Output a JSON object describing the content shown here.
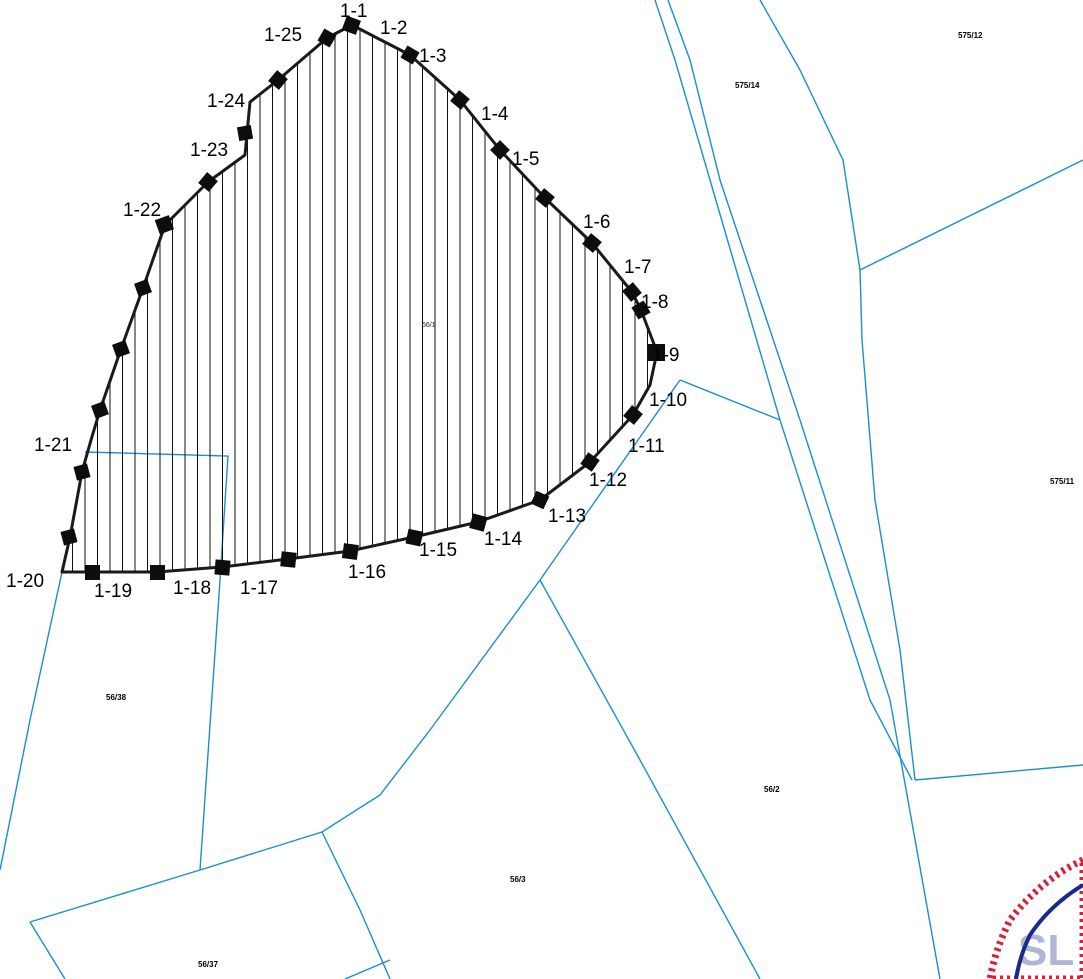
{
  "colors": {
    "parcel_boundary": "#1a8fd0",
    "plot_outline": "#1a1a1a",
    "hatching": "#111111",
    "marker": "#0d0d0d",
    "stamp_red": "#d8203a",
    "stamp_blue": "#1a2a8a"
  },
  "parcels": {
    "p56_1": "56/1",
    "p575_12": "575/12",
    "p575_14": "575/14",
    "p575_11": "575/11",
    "p56_38": "56/38",
    "p56_2": "56/2",
    "p56_3": "56/3",
    "p56_37": "56/37"
  },
  "points": [
    {
      "id": "1",
      "label": "1-1"
    },
    {
      "id": "2",
      "label": "1-2"
    },
    {
      "id": "3",
      "label": "1-3"
    },
    {
      "id": "4",
      "label": "1-4"
    },
    {
      "id": "5",
      "label": "1-5"
    },
    {
      "id": "6",
      "label": "1-6"
    },
    {
      "id": "7",
      "label": "1-7"
    },
    {
      "id": "8",
      "label": "1-8"
    },
    {
      "id": "9",
      "label": "1-9"
    },
    {
      "id": "10",
      "label": "1-10"
    },
    {
      "id": "11",
      "label": "1-11"
    },
    {
      "id": "12",
      "label": "1-12"
    },
    {
      "id": "13",
      "label": "1-13"
    },
    {
      "id": "14",
      "label": "1-14"
    },
    {
      "id": "15",
      "label": "1-15"
    },
    {
      "id": "16",
      "label": "1-16"
    },
    {
      "id": "17",
      "label": "1-17"
    },
    {
      "id": "18",
      "label": "1-18"
    },
    {
      "id": "19",
      "label": "1-19"
    },
    {
      "id": "20",
      "label": "1-20"
    },
    {
      "id": "21",
      "label": "1-21"
    },
    {
      "id": "22",
      "label": "1-22"
    },
    {
      "id": "23",
      "label": "1-23"
    },
    {
      "id": "24",
      "label": "1-24"
    },
    {
      "id": "25",
      "label": "1-25"
    }
  ],
  "stamp": {
    "text": "SL"
  }
}
